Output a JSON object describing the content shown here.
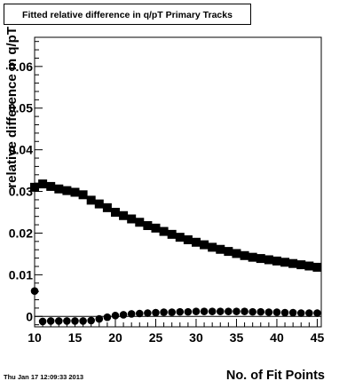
{
  "chart_data": {
    "type": "scatter",
    "title": "Fitted relative difference in q/pT Primary Tracks",
    "xlabel": "No. of Fit Points",
    "ylabel": "relative difference in q/pT",
    "xlim": [
      10,
      45.5
    ],
    "ylim": [
      -0.0025,
      0.067
    ],
    "x_ticks": [
      10,
      15,
      20,
      25,
      30,
      35,
      40,
      45
    ],
    "x_tick_labels": [
      "10",
      "15",
      "20",
      "25",
      "30",
      "35",
      "40",
      "45"
    ],
    "y_ticks": [
      0,
      0.01,
      0.02,
      0.03,
      0.04,
      0.05,
      0.06
    ],
    "y_tick_labels": [
      "0",
      "0.01",
      "0.02",
      "0.03",
      "0.04",
      "0.05",
      "0.06"
    ],
    "grid": false,
    "series": [
      {
        "marker": "square",
        "x": [
          10,
          11,
          12,
          13,
          14,
          15,
          16,
          17,
          18,
          19,
          20,
          21,
          22,
          23,
          24,
          25,
          26,
          27,
          28,
          29,
          30,
          31,
          32,
          33,
          34,
          35,
          36,
          37,
          38,
          39,
          40,
          41,
          42,
          43,
          44,
          45
        ],
        "values": [
          0.031,
          0.0318,
          0.0312,
          0.0306,
          0.0302,
          0.0298,
          0.0292,
          0.0279,
          0.027,
          0.0261,
          0.025,
          0.0242,
          0.0234,
          0.0226,
          0.0218,
          0.0212,
          0.0204,
          0.0197,
          0.019,
          0.0184,
          0.0178,
          0.0172,
          0.0166,
          0.0161,
          0.0156,
          0.0151,
          0.0146,
          0.0142,
          0.0139,
          0.0136,
          0.0133,
          0.013,
          0.0127,
          0.0124,
          0.0121,
          0.0118
        ]
      },
      {
        "marker": "circle",
        "x": [
          10,
          11,
          12,
          13,
          14,
          15,
          16,
          17,
          18,
          19,
          20,
          21,
          22,
          23,
          24,
          25,
          26,
          27,
          28,
          29,
          30,
          31,
          32,
          33,
          34,
          35,
          36,
          37,
          38,
          39,
          40,
          41,
          42,
          43,
          44,
          45
        ],
        "values": [
          0.0061,
          -0.0012,
          -0.0011,
          -0.0011,
          -0.0011,
          -0.0011,
          -0.0011,
          -0.001,
          -0.0006,
          -0.0002,
          0.0002,
          0.0004,
          0.0006,
          0.0007,
          0.0008,
          0.0009,
          0.001,
          0.001,
          0.0011,
          0.0011,
          0.0012,
          0.0012,
          0.0012,
          0.0012,
          0.0012,
          0.0012,
          0.0012,
          0.0011,
          0.0011,
          0.001,
          0.001,
          0.0009,
          0.0009,
          0.0008,
          0.0008,
          0.0008
        ]
      }
    ]
  },
  "footer": {
    "timestamp": "Thu Jan 17 12:09:33 2013"
  }
}
